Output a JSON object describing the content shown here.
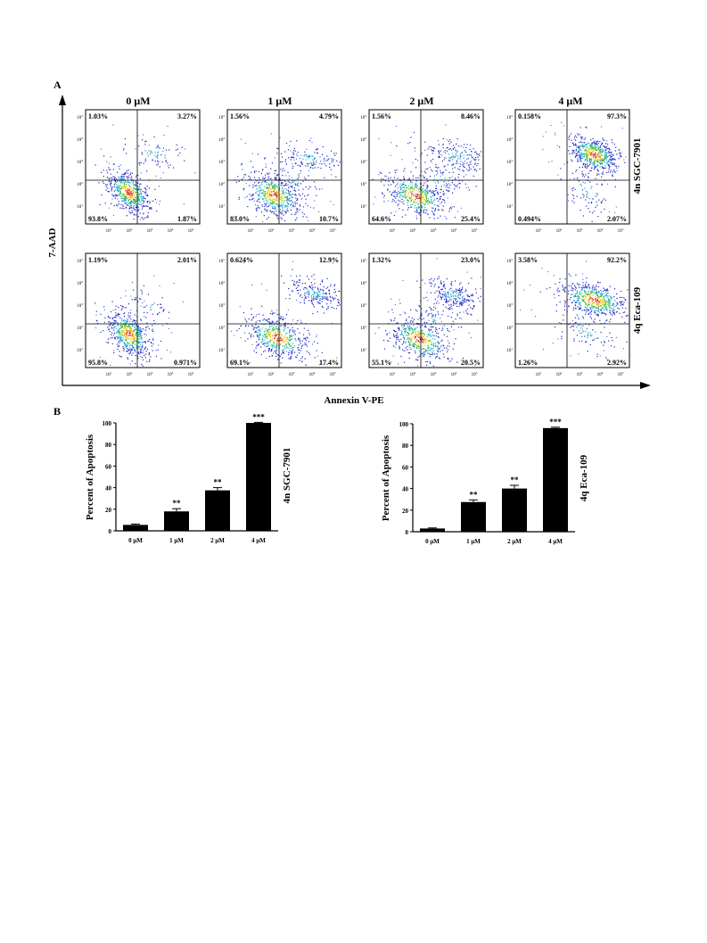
{
  "panel_a": {
    "label": "A",
    "ylabel": "7-AAD",
    "xlabel": "Annexin V-PE",
    "concentrations": [
      "0 μM",
      "1 μM",
      "2 μM",
      "4 μM"
    ],
    "tick_labels": [
      "10",
      "10",
      "10",
      "10",
      "10",
      "10"
    ],
    "tick_exponents": [
      "1",
      "2",
      "3",
      "4",
      "5",
      "1"
    ],
    "rows": [
      {
        "row_label": "4n  SGC-7901",
        "plots": [
          {
            "ul": "1.03%",
            "ur": "3.27%",
            "ll": "93.8%",
            "lr": "1.87%"
          },
          {
            "ul": "1.56%",
            "ur": "4.79%",
            "ll": "83.0%",
            "lr": "10.7%"
          },
          {
            "ul": "1.56%",
            "ur": "8.46%",
            "ll": "64.6%",
            "lr": "25.4%"
          },
          {
            "ul": "0.158%",
            "ur": "97.3%",
            "ll": "0.494%",
            "lr": "2.07%"
          }
        ]
      },
      {
        "row_label": "4q   Eca-109",
        "plots": [
          {
            "ul": "1.19%",
            "ur": "2.01%",
            "ll": "95.8%",
            "lr": "0.971%"
          },
          {
            "ul": "0.624%",
            "ur": "12.9%",
            "ll": "69.1%",
            "lr": "17.4%"
          },
          {
            "ul": "1.32%",
            "ur": "23.0%",
            "ll": "55.1%",
            "lr": "20.5%"
          },
          {
            "ul": "3.58%",
            "ur": "92.2%",
            "ll": "1.26%",
            "lr": "2.92%"
          }
        ]
      }
    ]
  },
  "panel_b": {
    "label": "B"
  },
  "chart_data": [
    {
      "type": "bar",
      "categories": [
        "0 μM",
        "1 μM",
        "2 μM",
        "4 μM"
      ],
      "values": [
        5.5,
        18,
        37.5,
        100
      ],
      "errors": [
        0.8,
        2.5,
        2.5,
        0.5
      ],
      "significance": [
        "",
        "**",
        "**",
        "***"
      ],
      "ylabel": "Percent of Apoptosis",
      "ylim": [
        0,
        100
      ],
      "yticks": [
        "0",
        "20",
        "40",
        "60",
        "80",
        "100"
      ],
      "side_label": "4n  SGC-7901"
    },
    {
      "type": "bar",
      "categories": [
        "0 μM",
        "1 μM",
        "2 μM",
        "4 μM"
      ],
      "values": [
        3,
        27.5,
        40,
        96
      ],
      "errors": [
        0.5,
        2,
        3,
        0.8
      ],
      "significance": [
        "",
        "**",
        "**",
        "***"
      ],
      "ylabel": "Percent of Apoptosis",
      "ylim": [
        0,
        100
      ],
      "yticks": [
        "0",
        "20",
        "40",
        "60",
        "80",
        "100"
      ],
      "side_label": "4q   Eca-109"
    }
  ]
}
